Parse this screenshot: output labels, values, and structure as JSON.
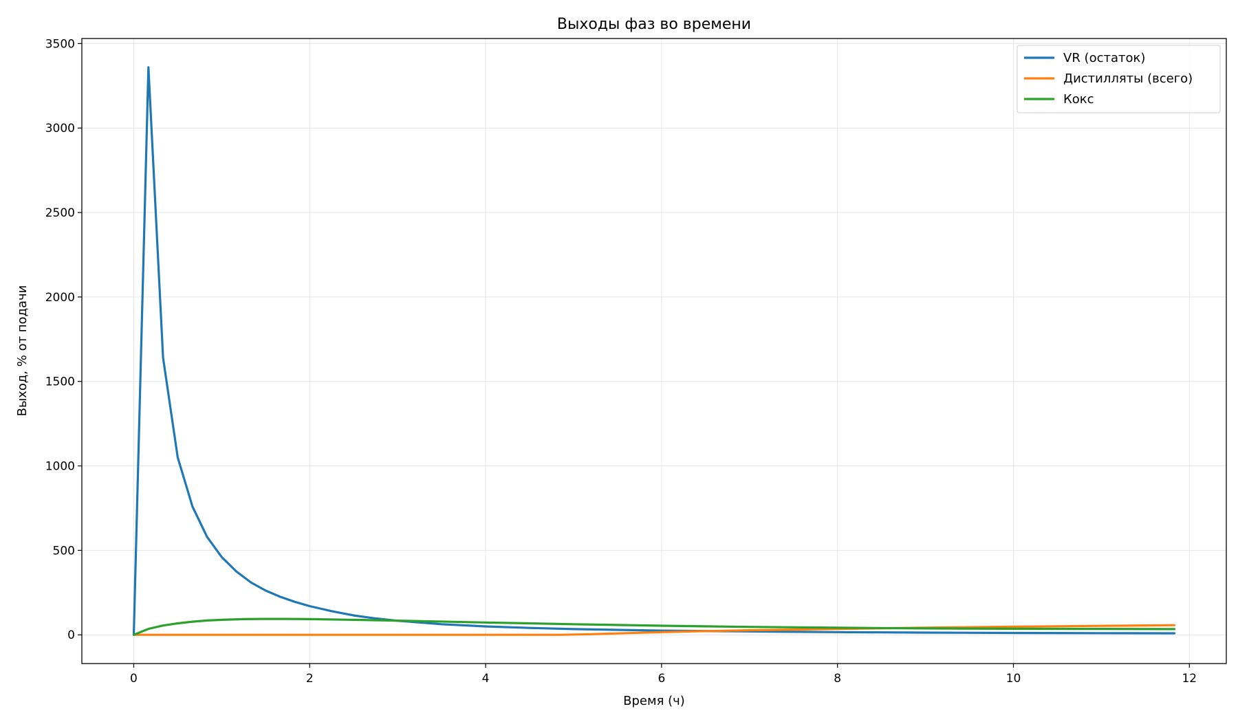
{
  "chart_data": {
    "type": "line",
    "title": "Выходы фаз во времени",
    "xlabel": "Время (ч)",
    "ylabel": "Выход, % от подачи",
    "xlim": [
      -0.59,
      12.42
    ],
    "ylim": [
      -170,
      3530
    ],
    "xticks": [
      0,
      2,
      4,
      6,
      8,
      10,
      12
    ],
    "yticks": [
      0,
      500,
      1000,
      1500,
      2000,
      2500,
      3000,
      3500
    ],
    "grid": true,
    "legend_position": "top-right",
    "series": [
      {
        "name": "VR (остаток)",
        "color": "#1f77b4",
        "x": [
          0,
          0.167,
          0.333,
          0.5,
          0.667,
          0.833,
          1.0,
          1.167,
          1.333,
          1.5,
          1.667,
          1.833,
          2.0,
          2.25,
          2.5,
          2.75,
          3.0,
          3.5,
          4.0,
          4.5,
          5.0,
          6.0,
          7.0,
          8.0,
          9.0,
          10.0,
          11.0,
          11.83
        ],
        "y": [
          0,
          3360,
          1640,
          1050,
          760,
          580,
          460,
          375,
          310,
          262,
          225,
          195,
          170,
          140,
          115,
          97,
          83,
          63,
          50,
          41,
          34,
          25,
          20,
          16,
          13,
          11,
          10,
          9
        ]
      },
      {
        "name": "Дистилляты (всего)",
        "color": "#ff7f0e",
        "x": [
          0,
          1,
          2,
          3,
          4,
          4.85,
          5.2,
          5.6,
          6.0,
          6.5,
          7.0,
          7.5,
          8.0,
          9.0,
          10.0,
          11.0,
          11.83
        ],
        "y": [
          0,
          0,
          0,
          0,
          0,
          0,
          4,
          10,
          16,
          22,
          27,
          31,
          35,
          42,
          48,
          53,
          57
        ]
      },
      {
        "name": "Кокс",
        "color": "#2ca02c",
        "x": [
          0,
          0.167,
          0.333,
          0.5,
          0.667,
          0.833,
          1.0,
          1.25,
          1.5,
          1.75,
          2.0,
          2.5,
          3.0,
          4.0,
          5.0,
          6.0,
          7.0,
          8.0,
          9.0,
          10.0,
          11.0,
          11.83
        ],
        "y": [
          0,
          35,
          55,
          68,
          78,
          85,
          89,
          93,
          94,
          94,
          93,
          89,
          84,
          73,
          63,
          54,
          47,
          42,
          38,
          36,
          35,
          34
        ]
      }
    ]
  }
}
